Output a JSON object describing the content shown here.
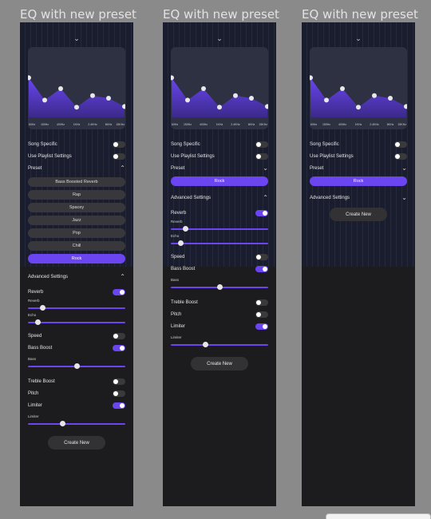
{
  "frames": [
    {
      "title": "EQ with new preset",
      "eq": {
        "freq_labels": [
          "60Hz",
          "150Hz",
          "400Hz",
          "1KHz",
          "2.4KHz",
          "6KHz",
          "15KHz"
        ],
        "levels": [
          0.62,
          0.27,
          0.45,
          0.16,
          0.34,
          0.3,
          0.17
        ]
      },
      "song_specific": {
        "label": "Song Specific",
        "on": false
      },
      "playlist": {
        "label": "Use Playlist Settings",
        "on": false
      },
      "preset": {
        "label": "Preset",
        "expanded": true
      },
      "presets": [
        "Bass Boosted Reverb",
        "Rap",
        "Spacey",
        "Jazz",
        "Pop",
        "Chill",
        "Rock"
      ],
      "active_preset": "Rock",
      "advanced": {
        "label": "Advanced Settings",
        "expanded": true
      },
      "reverb": {
        "label": "Reverb",
        "on": true
      },
      "reverb_slider": {
        "label": "Reverb",
        "value": 0.15
      },
      "echo_slider": {
        "label": "Echo",
        "value": 0.1
      },
      "speed": {
        "label": "Speed",
        "on": false
      },
      "bass_boost": {
        "label": "Bass Boost",
        "on": true
      },
      "bass_slider": {
        "label": "Bass",
        "value": 0.5
      },
      "treble": {
        "label": "Treble Boost",
        "on": false
      },
      "pitch": {
        "label": "Pitch",
        "on": false
      },
      "limiter": {
        "label": "Limiter",
        "on": true
      },
      "limiter_slider": {
        "label": "Limiter",
        "value": 0.35
      },
      "create_button": "Create New"
    },
    {
      "title": "EQ with new preset",
      "eq": {
        "freq_labels": [
          "60Hz",
          "150Hz",
          "400Hz",
          "1KHz",
          "2.4KHz",
          "6KHz",
          "15KHz"
        ],
        "levels": [
          0.62,
          0.27,
          0.45,
          0.16,
          0.34,
          0.3,
          0.17
        ]
      },
      "song_specific": {
        "label": "Song Specific",
        "on": false
      },
      "playlist": {
        "label": "Use Playlist Settings",
        "on": false
      },
      "preset": {
        "label": "Preset",
        "expanded": false
      },
      "active_preset": "Rock",
      "advanced": {
        "label": "Advanced Settings",
        "expanded": true
      },
      "reverb": {
        "label": "Reverb",
        "on": true
      },
      "reverb_slider": {
        "label": "Reverb",
        "value": 0.15
      },
      "echo_slider": {
        "label": "Echo",
        "value": 0.1
      },
      "speed": {
        "label": "Speed",
        "on": false
      },
      "bass_boost": {
        "label": "Bass Boost",
        "on": true
      },
      "bass_slider": {
        "label": "Bass",
        "value": 0.5
      },
      "treble": {
        "label": "Treble Boost",
        "on": false
      },
      "pitch": {
        "label": "Pitch",
        "on": false
      },
      "limiter": {
        "label": "Limiter",
        "on": true
      },
      "limiter_slider": {
        "label": "Limiter",
        "value": 0.35
      },
      "create_button": "Create New"
    },
    {
      "title": "EQ with new preset",
      "eq": {
        "freq_labels": [
          "60Hz",
          "150Hz",
          "400Hz",
          "1KHz",
          "2.4KHz",
          "6KHz",
          "15KHz"
        ],
        "levels": [
          0.62,
          0.27,
          0.45,
          0.16,
          0.34,
          0.3,
          0.17
        ]
      },
      "song_specific": {
        "label": "Song Specific",
        "on": false
      },
      "playlist": {
        "label": "Use Playlist Settings",
        "on": false
      },
      "preset": {
        "label": "Preset",
        "expanded": false
      },
      "active_preset": "Rock",
      "advanced": {
        "label": "Advanced Settings",
        "expanded": false
      },
      "create_button": "Create New"
    }
  ],
  "colors": {
    "accent": "#6a45f0",
    "panel": "#1c1c1e",
    "chart_bg": "#2e3142",
    "backdrop": "#8a8a8a"
  },
  "icons": {
    "chevron_down": "chevron-down-icon",
    "chevron_up": "chevron-up-icon"
  }
}
